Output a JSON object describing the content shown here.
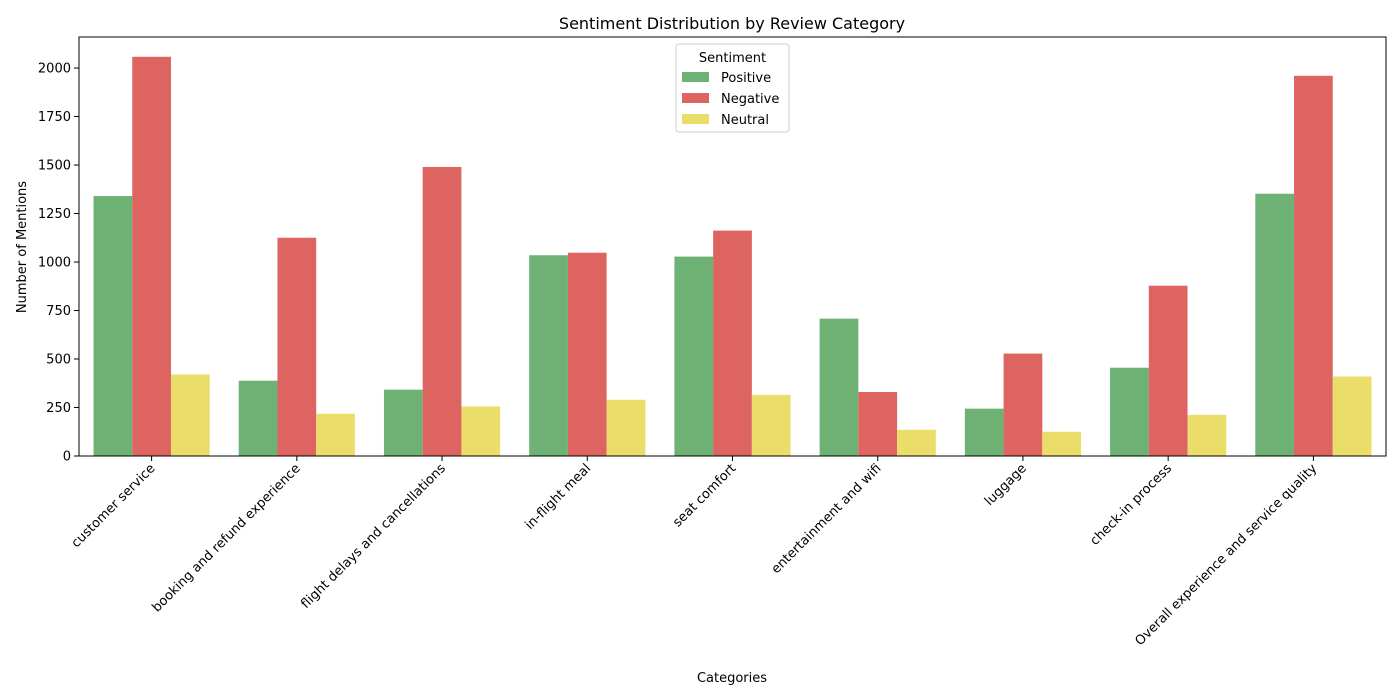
{
  "chart_data": {
    "type": "bar",
    "title": "Sentiment Distribution by Review Category",
    "xlabel": "Categories",
    "ylabel": "Number of Mentions",
    "ylim": [
      0,
      2160
    ],
    "yticks": [
      0,
      250,
      500,
      750,
      1000,
      1250,
      1500,
      1750,
      2000
    ],
    "grid": false,
    "legend_title": "Sentiment",
    "legend_position": "top-center",
    "categories": [
      "customer service",
      "booking and refund experience",
      "flight delays and cancellations",
      "in-flight meal",
      "seat comfort",
      "entertainment and wifi",
      "luggage",
      "check-in process",
      "Overall experience and service quality"
    ],
    "series": [
      {
        "name": "Positive",
        "color": "#6db174",
        "values": [
          1340,
          388,
          342,
          1035,
          1028,
          708,
          244,
          455,
          1352
        ]
      },
      {
        "name": "Negative",
        "color": "#de6461",
        "values": [
          2058,
          1125,
          1490,
          1048,
          1162,
          330,
          528,
          878,
          1960
        ]
      },
      {
        "name": "Neutral",
        "color": "#eadd6a",
        "values": [
          420,
          218,
          255,
          290,
          315,
          135,
          125,
          212,
          410
        ]
      }
    ]
  }
}
